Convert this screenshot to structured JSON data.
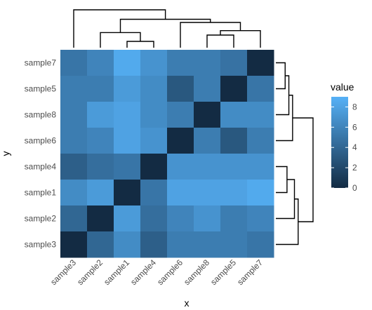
{
  "chart_data": {
    "type": "heatmap",
    "xlabel": "x",
    "ylabel": "y",
    "x_categories": [
      "sample3",
      "sample2",
      "sample1",
      "sample4",
      "sample6",
      "sample8",
      "sample5",
      "sample7"
    ],
    "y_categories": [
      "sample7",
      "sample5",
      "sample8",
      "sample6",
      "sample4",
      "sample1",
      "sample2",
      "sample3"
    ],
    "values": [
      [
        5.0,
        6.0,
        8.5,
        7.0,
        5.5,
        5.5,
        4.8,
        0.0
      ],
      [
        5.5,
        5.5,
        7.5,
        6.5,
        3.0,
        5.5,
        0.0,
        5.0
      ],
      [
        5.5,
        7.5,
        8.0,
        6.5,
        5.5,
        0.0,
        6.5,
        6.5
      ],
      [
        5.5,
        6.0,
        8.0,
        7.0,
        0.0,
        5.5,
        3.0,
        5.5
      ],
      [
        3.5,
        4.5,
        5.0,
        0.0,
        7.0,
        7.0,
        7.0,
        7.0
      ],
      [
        6.5,
        7.5,
        0.0,
        5.0,
        8.0,
        8.0,
        8.0,
        8.5
      ],
      [
        4.0,
        0.0,
        7.5,
        4.5,
        6.0,
        7.0,
        5.5,
        6.0
      ],
      [
        0.0,
        4.0,
        6.5,
        3.5,
        5.5,
        5.5,
        5.5,
        5.0
      ]
    ],
    "color_scale": {
      "low": "#132b43",
      "high": "#56b1f7",
      "min": 0,
      "max": 9
    },
    "legend": {
      "title": "value",
      "position": "right",
      "ticks": [
        0,
        2,
        4,
        6,
        8
      ],
      "tick_labels": [
        "0",
        "2",
        "4",
        "6",
        "8"
      ]
    },
    "column_dendrogram": {
      "position": "top",
      "links": [
        {
          "a": [
            2,
            2
          ],
          "b": [
            3,
            3
          ],
          "height": 1.0
        },
        {
          "a": [
            1,
            1
          ],
          "b": [
            2.5,
            2.5
          ],
          "height": 2.4
        },
        {
          "a": [
            5,
            5
          ],
          "b": [
            6,
            6
          ],
          "height": 2.0
        },
        {
          "a": [
            5.5,
            5.5
          ],
          "b": [
            7,
            7
          ],
          "height": 2.7
        },
        {
          "a": [
            4,
            4
          ],
          "b": [
            6.25,
            6.25
          ],
          "height": 4.0
        },
        {
          "a": [
            1.75,
            1.75
          ],
          "b": [
            5.125,
            5.125
          ],
          "height": 4.5
        },
        {
          "a": [
            0,
            0
          ],
          "b": [
            3.4375,
            3.4375
          ],
          "height": 6.0
        }
      ]
    },
    "row_dendrogram": {
      "position": "right",
      "links": [
        {
          "a": [
            0,
            0
          ],
          "b": [
            1,
            1
          ],
          "height": 2.5
        },
        {
          "a": [
            0.5,
            0.5
          ],
          "b": [
            2,
            2
          ],
          "height": 3.5
        },
        {
          "a": [
            1.25,
            1.25
          ],
          "b": [
            3,
            3
          ],
          "height": 4.5
        },
        {
          "a": [
            4,
            4
          ],
          "b": [
            5,
            5
          ],
          "height": 3.0
        },
        {
          "a": [
            4.5,
            4.5
          ],
          "b": [
            6,
            6
          ],
          "height": 5.0
        },
        {
          "a": [
            5.25,
            5.25
          ],
          "b": [
            7,
            7
          ],
          "height": 6.0
        },
        {
          "a": [
            2.125,
            2.125
          ],
          "b": [
            6.125,
            6.125
          ],
          "height": 10.0
        }
      ]
    }
  }
}
